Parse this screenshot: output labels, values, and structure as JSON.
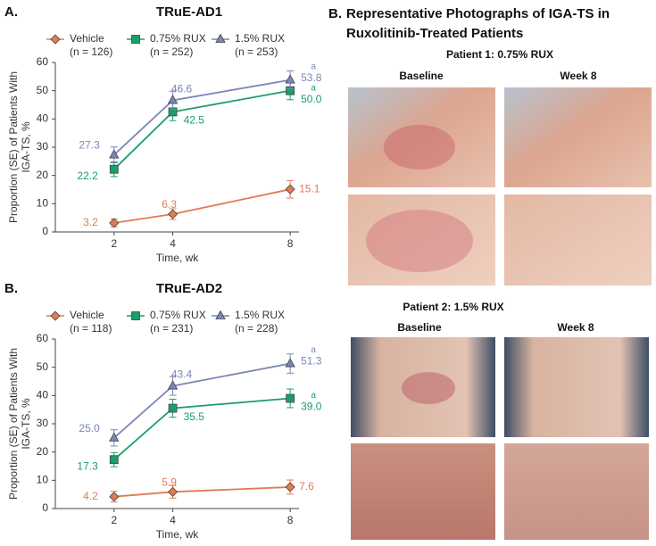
{
  "chart_data": [
    {
      "type": "line",
      "panel": "A.",
      "title": "TRuE-AD1",
      "x": [
        2,
        4,
        8
      ],
      "xlim": [
        0,
        8.3
      ],
      "xticks": [
        2,
        4,
        8
      ],
      "ylim": [
        0,
        60
      ],
      "yticks": [
        0,
        10,
        20,
        30,
        40,
        50,
        60
      ],
      "xlabel": "Time, wk",
      "ylabel": [
        "Proportion (SE) of Patients With",
        "IGA-TS, %"
      ],
      "series": [
        {
          "name": "Vehicle",
          "n_label": "(n = 126)",
          "color": "#e07b54",
          "marker": "diamond",
          "values": [
            3.2,
            6.3,
            15.1
          ],
          "errors": [
            1.4,
            1.9,
            3.1
          ],
          "value_labels": [
            "3.2",
            "6.3",
            "15.1"
          ]
        },
        {
          "name": "0.75% RUX",
          "n_label": "(n = 252)",
          "color": "#1a9e6a",
          "marker": "square",
          "values": [
            22.2,
            42.5,
            50.0
          ],
          "errors": [
            2.6,
            3.1,
            3.2
          ],
          "value_labels": [
            "22.2",
            "42.5",
            "50.0"
          ],
          "note": "a"
        },
        {
          "name": "1.5% RUX",
          "n_label": "(n = 253)",
          "color": "#7b86b8",
          "marker": "triangle",
          "values": [
            27.3,
            46.6,
            53.8
          ],
          "errors": [
            2.8,
            3.2,
            3.2
          ],
          "value_labels": [
            "27.3",
            "46.6",
            "53.8"
          ],
          "note": "a"
        }
      ]
    },
    {
      "type": "line",
      "panel": "B.",
      "title": "TRuE-AD2",
      "x": [
        2,
        4,
        8
      ],
      "xlim": [
        0,
        8.3
      ],
      "xticks": [
        2,
        4,
        8
      ],
      "ylim": [
        0,
        60
      ],
      "yticks": [
        0,
        10,
        20,
        30,
        40,
        50,
        60
      ],
      "xlabel": "Time, wk",
      "ylabel": [
        "Proportion (SE) of Patients With",
        "IGA-TS, %"
      ],
      "series": [
        {
          "name": "Vehicle",
          "n_label": "(n = 118)",
          "color": "#e07b54",
          "marker": "diamond",
          "values": [
            4.2,
            5.9,
            7.6
          ],
          "errors": [
            1.9,
            2.2,
            2.5
          ],
          "value_labels": [
            "4.2",
            "5.9",
            "7.6"
          ]
        },
        {
          "name": "0.75% RUX",
          "n_label": "(n = 231)",
          "color": "#1a9e6a",
          "marker": "square",
          "values": [
            17.3,
            35.5,
            39.0
          ],
          "errors": [
            2.5,
            3.2,
            3.3
          ],
          "value_labels": [
            "17.3",
            "35.5",
            "39.0"
          ],
          "note": "a"
        },
        {
          "name": "1.5% RUX",
          "n_label": "(n = 228)",
          "color": "#7b86b8",
          "marker": "triangle",
          "values": [
            25.0,
            43.4,
            51.3
          ],
          "errors": [
            2.9,
            3.3,
            3.4
          ],
          "value_labels": [
            "25.0",
            "43.4",
            "51.3"
          ],
          "note": "a"
        }
      ]
    }
  ],
  "photos": {
    "panel": "B.",
    "title": [
      "Representative Photographs of IGA-TS in",
      "Ruxolitinib-Treated Patients"
    ],
    "patients": [
      {
        "label": "Patient 1: 0.75% RUX",
        "columns": [
          "Baseline",
          "Week 8"
        ]
      },
      {
        "label": "Patient 2: 1.5% RUX",
        "columns": [
          "Baseline",
          "Week 8"
        ]
      }
    ]
  }
}
